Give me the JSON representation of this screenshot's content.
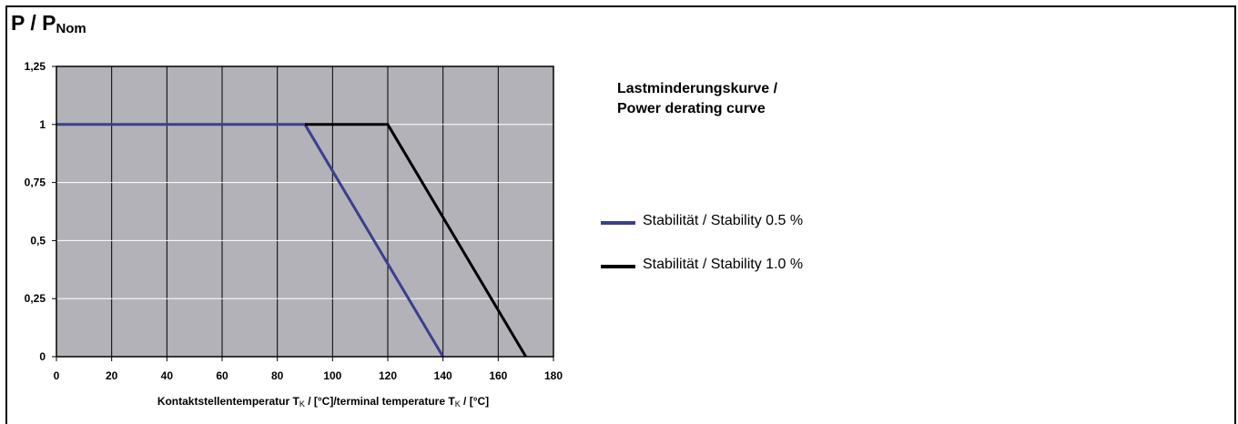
{
  "chart_data": {
    "type": "line",
    "ylabel_main": "P / P",
    "ylabel_sub": "Nom",
    "xlabel_parts": [
      "Kontaktstellentemperatur T",
      "K",
      " / [°C]/terminal temperature T",
      "K",
      " / [°C]"
    ],
    "xlim": [
      0,
      180
    ],
    "ylim": [
      0,
      1.25
    ],
    "x_ticks": [
      0,
      20,
      40,
      60,
      80,
      100,
      120,
      140,
      160,
      180
    ],
    "y_ticks": [
      0,
      0.25,
      0.5,
      0.75,
      1,
      1.25
    ],
    "y_tick_labels": [
      "0",
      "0,25",
      "0,5",
      "0,75",
      "1",
      "1,25"
    ],
    "grid": true,
    "plot_background": "#b2b2b8",
    "legend_title": [
      "Lastminderungskurve /",
      "Power derating curve"
    ],
    "series": [
      {
        "name": "Stabilität / Stability 0.5 %",
        "color": "#3b3f8f",
        "x": [
          0,
          90,
          140
        ],
        "y": [
          1,
          1,
          0
        ]
      },
      {
        "name": "Stabilität / Stability 1.0 %",
        "color": "#000000",
        "x": [
          90,
          120,
          170
        ],
        "y": [
          1,
          1,
          0
        ]
      }
    ],
    "legend_placement": "right"
  }
}
